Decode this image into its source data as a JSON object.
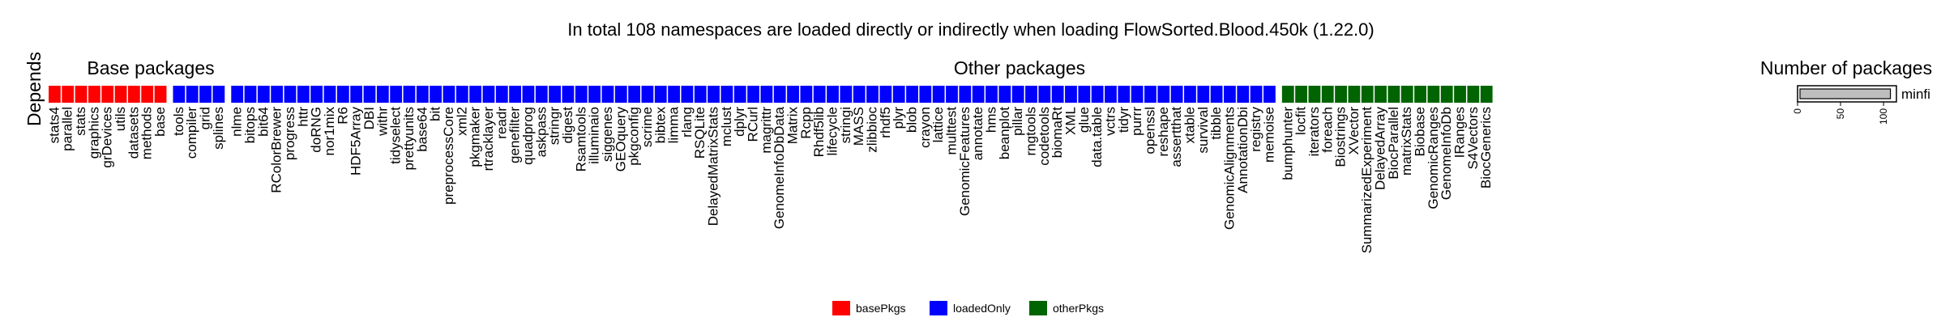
{
  "chart_data": {
    "type": "table",
    "title": "In total 108 namespaces are loaded directly or indirectly when loading FlowSorted.Blood.450k (1.22.0)",
    "row_label": "Depends",
    "sections": [
      {
        "label": "Base packages"
      },
      {
        "label": "Other packages"
      },
      {
        "label": "Number of packages"
      }
    ],
    "colors": {
      "basePkgs": "#ff0000",
      "loadedOnly": "#0000ff",
      "otherPkgs": "#006400"
    },
    "groups": [
      {
        "name": "basePkgs",
        "packages": [
          "stats4",
          "parallel",
          "stats",
          "graphics",
          "grDevices",
          "utils",
          "datasets",
          "methods",
          "base"
        ]
      },
      {
        "name": "loadedOnly",
        "packages": [
          "tools",
          "compiler",
          "grid",
          "splines"
        ]
      },
      {
        "name": "loadedOnly",
        "packages": [
          "nlme",
          "bitops",
          "bit64",
          "RColorBrewer",
          "progress",
          "httr",
          "doRNG",
          "nor1mix",
          "R6",
          "HDF5Array",
          "DBI",
          "withr",
          "tidyselect",
          "prettyunits",
          "base64",
          "bit",
          "preprocessCore",
          "xml2",
          "pkgmaker",
          "rtracklayer",
          "readr",
          "genefilter",
          "quadprog",
          "askpass",
          "stringr",
          "digest",
          "Rsamtools",
          "illuminaio",
          "siggenes",
          "GEOquery",
          "pkgconfig",
          "scrime",
          "bibtex",
          "limma",
          "rlang",
          "RSQLite",
          "DelayedMatrixStats",
          "mclust",
          "dplyr",
          "RCurl",
          "magrittr",
          "GenomeInfoDbData",
          "Matrix",
          "Rcpp",
          "Rhdf5lib",
          "lifecycle",
          "stringi",
          "MASS",
          "zlibbioc",
          "rhdf5",
          "plyr",
          "blob",
          "crayon",
          "lattice",
          "multtest",
          "GenomicFeatures",
          "annotate",
          "hms",
          "beanplot",
          "pillar",
          "rngtools",
          "codetools",
          "biomaRt",
          "XML",
          "glue",
          "data.table",
          "vctrs",
          "tidyr",
          "purrr",
          "openssl",
          "reshape",
          "assertthat",
          "xtable",
          "survival",
          "tibble",
          "GenomicAlignments",
          "AnnotationDbi",
          "registry",
          "memoise"
        ]
      },
      {
        "name": "otherPkgs",
        "packages": [
          "bumphunter",
          "locfit",
          "iterators",
          "foreach",
          "Biostrings",
          "XVector",
          "SummarizedExperiment",
          "DelayedArray",
          "BiocParallel",
          "matrixStats",
          "Biobase",
          "GenomicRanges",
          "GenomeInfoDb",
          "IRanges",
          "S4Vectors",
          "BiocGenerics"
        ]
      }
    ],
    "bar": {
      "label": "minfi",
      "value": 108,
      "ticks": [
        "0",
        "50",
        "100"
      ],
      "xlim": [
        0,
        115
      ]
    },
    "legend": {
      "position": "bottom",
      "items": [
        "basePkgs",
        "loadedOnly",
        "otherPkgs"
      ]
    }
  }
}
